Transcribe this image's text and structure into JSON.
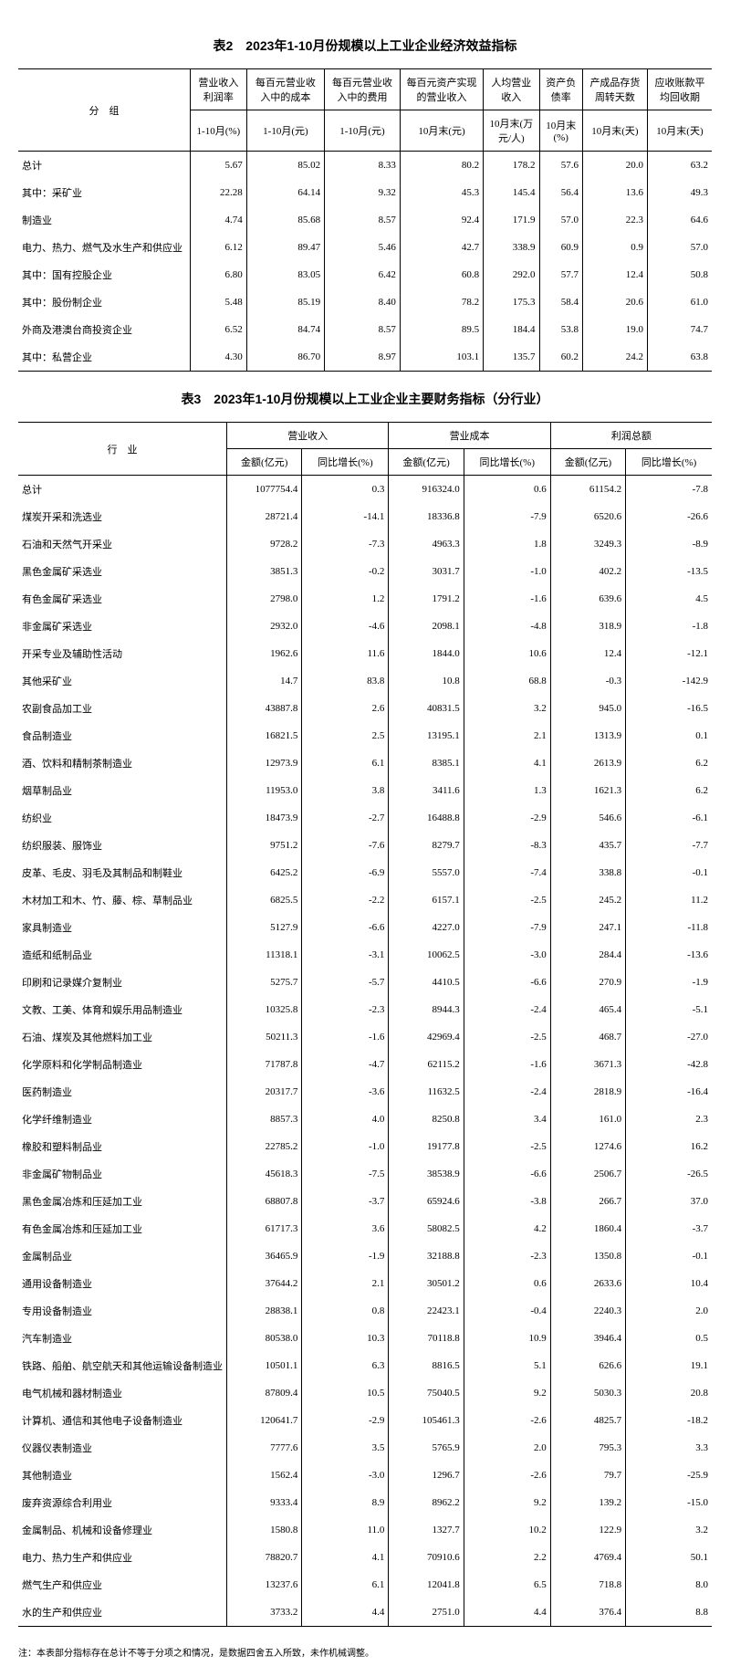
{
  "table2": {
    "title": "表2　2023年1-10月份规模以上工业企业经济效益指标",
    "header_group": "分　组",
    "columns": [
      "营业收入利润率",
      "每百元营业收入中的成本",
      "每百元营业收入中的费用",
      "每百元资产实现的营业收入",
      "人均营业收入",
      "资产负债率",
      "产成品存货周转天数",
      "应收账款平均回收期"
    ],
    "subcolumns": [
      "1-10月(%)",
      "1-10月(元)",
      "1-10月(元)",
      "10月末(元)",
      "10月末(万元/人)",
      "10月末(%)",
      "10月末(天)",
      "10月末(天)"
    ],
    "rows": [
      {
        "label": "总计",
        "indent": 0,
        "v": [
          "5.67",
          "85.02",
          "8.33",
          "80.2",
          "178.2",
          "57.6",
          "20.0",
          "63.2"
        ]
      },
      {
        "label": "其中：采矿业",
        "indent": 0,
        "v": [
          "22.28",
          "64.14",
          "9.32",
          "45.3",
          "145.4",
          "56.4",
          "13.6",
          "49.3"
        ]
      },
      {
        "label": "制造业",
        "indent": 2,
        "v": [
          "4.74",
          "85.68",
          "8.57",
          "92.4",
          "171.9",
          "57.0",
          "22.3",
          "64.6"
        ]
      },
      {
        "label": "电力、热力、燃气及水生产和供应业",
        "indent": 2,
        "v": [
          "6.12",
          "89.47",
          "5.46",
          "42.7",
          "338.9",
          "60.9",
          "0.9",
          "57.0"
        ]
      },
      {
        "label": "其中：国有控股企业",
        "indent": 0,
        "v": [
          "6.80",
          "83.05",
          "6.42",
          "60.8",
          "292.0",
          "57.7",
          "12.4",
          "50.8"
        ]
      },
      {
        "label": "其中：股份制企业",
        "indent": 0,
        "v": [
          "5.48",
          "85.19",
          "8.40",
          "78.2",
          "175.3",
          "58.4",
          "20.6",
          "61.0"
        ]
      },
      {
        "label": "外商及港澳台商投资企业",
        "indent": 2,
        "v": [
          "6.52",
          "84.74",
          "8.57",
          "89.5",
          "184.4",
          "53.8",
          "19.0",
          "74.7"
        ]
      },
      {
        "label": "其中：私营企业",
        "indent": 0,
        "v": [
          "4.30",
          "86.70",
          "8.97",
          "103.1",
          "135.7",
          "60.2",
          "24.2",
          "63.8"
        ]
      }
    ]
  },
  "table3": {
    "title": "表3　2023年1-10月份规模以上工业企业主要财务指标（分行业）",
    "header_industry": "行　业",
    "header_groups": [
      "营业收入",
      "营业成本",
      "利润总额"
    ],
    "subheaders": [
      "金额(亿元)",
      "同比增长(%)"
    ],
    "rows": [
      {
        "label": "总计",
        "indent": 0,
        "v": [
          "1077754.4",
          "0.3",
          "916324.0",
          "0.6",
          "61154.2",
          "-7.8"
        ]
      },
      {
        "label": "煤炭开采和洗选业",
        "indent": 1,
        "v": [
          "28721.4",
          "-14.1",
          "18336.8",
          "-7.9",
          "6520.6",
          "-26.6"
        ]
      },
      {
        "label": "石油和天然气开采业",
        "indent": 1,
        "v": [
          "9728.2",
          "-7.3",
          "4963.3",
          "1.8",
          "3249.3",
          "-8.9"
        ]
      },
      {
        "label": "黑色金属矿采选业",
        "indent": 1,
        "v": [
          "3851.3",
          "-0.2",
          "3031.7",
          "-1.0",
          "402.2",
          "-13.5"
        ]
      },
      {
        "label": "有色金属矿采选业",
        "indent": 1,
        "v": [
          "2798.0",
          "1.2",
          "1791.2",
          "-1.6",
          "639.6",
          "4.5"
        ]
      },
      {
        "label": "非金属矿采选业",
        "indent": 1,
        "v": [
          "2932.0",
          "-4.6",
          "2098.1",
          "-4.8",
          "318.9",
          "-1.8"
        ]
      },
      {
        "label": "开采专业及辅助性活动",
        "indent": 1,
        "v": [
          "1962.6",
          "11.6",
          "1844.0",
          "10.6",
          "12.4",
          "-12.1"
        ]
      },
      {
        "label": "其他采矿业",
        "indent": 1,
        "v": [
          "14.7",
          "83.8",
          "10.8",
          "68.8",
          "-0.3",
          "-142.9"
        ]
      },
      {
        "label": "农副食品加工业",
        "indent": 1,
        "v": [
          "43887.8",
          "2.6",
          "40831.5",
          "3.2",
          "945.0",
          "-16.5"
        ]
      },
      {
        "label": "食品制造业",
        "indent": 1,
        "v": [
          "16821.5",
          "2.5",
          "13195.1",
          "2.1",
          "1313.9",
          "0.1"
        ]
      },
      {
        "label": "酒、饮料和精制茶制造业",
        "indent": 1,
        "v": [
          "12973.9",
          "6.1",
          "8385.1",
          "4.1",
          "2613.9",
          "6.2"
        ]
      },
      {
        "label": "烟草制品业",
        "indent": 1,
        "v": [
          "11953.0",
          "3.8",
          "3411.6",
          "1.3",
          "1621.3",
          "6.2"
        ]
      },
      {
        "label": "纺织业",
        "indent": 1,
        "v": [
          "18473.9",
          "-2.7",
          "16488.8",
          "-2.9",
          "546.6",
          "-6.1"
        ]
      },
      {
        "label": "纺织服装、服饰业",
        "indent": 1,
        "v": [
          "9751.2",
          "-7.6",
          "8279.7",
          "-8.3",
          "435.7",
          "-7.7"
        ]
      },
      {
        "label": "皮革、毛皮、羽毛及其制品和制鞋业",
        "indent": 1,
        "v": [
          "6425.2",
          "-6.9",
          "5557.0",
          "-7.4",
          "338.8",
          "-0.1"
        ]
      },
      {
        "label": "木材加工和木、竹、藤、棕、草制品业",
        "indent": 1,
        "v": [
          "6825.5",
          "-2.2",
          "6157.1",
          "-2.5",
          "245.2",
          "11.2"
        ]
      },
      {
        "label": "家具制造业",
        "indent": 1,
        "v": [
          "5127.9",
          "-6.6",
          "4227.0",
          "-7.9",
          "247.1",
          "-11.8"
        ]
      },
      {
        "label": "造纸和纸制品业",
        "indent": 1,
        "v": [
          "11318.1",
          "-3.1",
          "10062.5",
          "-3.0",
          "284.4",
          "-13.6"
        ]
      },
      {
        "label": "印刷和记录媒介复制业",
        "indent": 1,
        "v": [
          "5275.7",
          "-5.7",
          "4410.5",
          "-6.6",
          "270.9",
          "-1.9"
        ]
      },
      {
        "label": "文教、工美、体育和娱乐用品制造业",
        "indent": 1,
        "v": [
          "10325.8",
          "-2.3",
          "8944.3",
          "-2.4",
          "465.4",
          "-5.1"
        ]
      },
      {
        "label": "石油、煤炭及其他燃料加工业",
        "indent": 1,
        "v": [
          "50211.3",
          "-1.6",
          "42969.4",
          "-2.5",
          "468.7",
          "-27.0"
        ]
      },
      {
        "label": "化学原料和化学制品制造业",
        "indent": 1,
        "v": [
          "71787.8",
          "-4.7",
          "62115.2",
          "-1.6",
          "3671.3",
          "-42.8"
        ]
      },
      {
        "label": "医药制造业",
        "indent": 1,
        "v": [
          "20317.7",
          "-3.6",
          "11632.5",
          "-2.4",
          "2818.9",
          "-16.4"
        ]
      },
      {
        "label": "化学纤维制造业",
        "indent": 1,
        "v": [
          "8857.3",
          "4.0",
          "8250.8",
          "3.4",
          "161.0",
          "2.3"
        ]
      },
      {
        "label": "橡胶和塑料制品业",
        "indent": 1,
        "v": [
          "22785.2",
          "-1.0",
          "19177.8",
          "-2.5",
          "1274.6",
          "16.2"
        ]
      },
      {
        "label": "非金属矿物制品业",
        "indent": 1,
        "v": [
          "45618.3",
          "-7.5",
          "38538.9",
          "-6.6",
          "2506.7",
          "-26.5"
        ]
      },
      {
        "label": "黑色金属冶炼和压延加工业",
        "indent": 1,
        "v": [
          "68807.8",
          "-3.7",
          "65924.6",
          "-3.8",
          "266.7",
          "37.0"
        ]
      },
      {
        "label": "有色金属冶炼和压延加工业",
        "indent": 1,
        "v": [
          "61717.3",
          "3.6",
          "58082.5",
          "4.2",
          "1860.4",
          "-3.7"
        ]
      },
      {
        "label": "金属制品业",
        "indent": 1,
        "v": [
          "36465.9",
          "-1.9",
          "32188.8",
          "-2.3",
          "1350.8",
          "-0.1"
        ]
      },
      {
        "label": "通用设备制造业",
        "indent": 1,
        "v": [
          "37644.2",
          "2.1",
          "30501.2",
          "0.6",
          "2633.6",
          "10.4"
        ]
      },
      {
        "label": "专用设备制造业",
        "indent": 1,
        "v": [
          "28838.1",
          "0.8",
          "22423.1",
          "-0.4",
          "2240.3",
          "2.0"
        ]
      },
      {
        "label": "汽车制造业",
        "indent": 1,
        "v": [
          "80538.0",
          "10.3",
          "70118.8",
          "10.9",
          "3946.4",
          "0.5"
        ]
      },
      {
        "label": "铁路、船舶、航空航天和其他运输设备制造业",
        "indent": 1,
        "v": [
          "10501.1",
          "6.3",
          "8816.5",
          "5.1",
          "626.6",
          "19.1"
        ]
      },
      {
        "label": "电气机械和器材制造业",
        "indent": 1,
        "v": [
          "87809.4",
          "10.5",
          "75040.5",
          "9.2",
          "5030.3",
          "20.8"
        ]
      },
      {
        "label": "计算机、通信和其他电子设备制造业",
        "indent": 1,
        "v": [
          "120641.7",
          "-2.9",
          "105461.3",
          "-2.6",
          "4825.7",
          "-18.2"
        ]
      },
      {
        "label": "仪器仪表制造业",
        "indent": 1,
        "v": [
          "7777.6",
          "3.5",
          "5765.9",
          "2.0",
          "795.3",
          "3.3"
        ]
      },
      {
        "label": "其他制造业",
        "indent": 1,
        "v": [
          "1562.4",
          "-3.0",
          "1296.7",
          "-2.6",
          "79.7",
          "-25.9"
        ]
      },
      {
        "label": "废弃资源综合利用业",
        "indent": 1,
        "v": [
          "9333.4",
          "8.9",
          "8962.2",
          "9.2",
          "139.2",
          "-15.0"
        ]
      },
      {
        "label": "金属制品、机械和设备修理业",
        "indent": 1,
        "v": [
          "1580.8",
          "11.0",
          "1327.7",
          "10.2",
          "122.9",
          "3.2"
        ]
      },
      {
        "label": "电力、热力生产和供应业",
        "indent": 1,
        "v": [
          "78820.7",
          "4.1",
          "70910.6",
          "2.2",
          "4769.4",
          "50.1"
        ]
      },
      {
        "label": "燃气生产和供应业",
        "indent": 1,
        "v": [
          "13237.6",
          "6.1",
          "12041.8",
          "6.5",
          "718.8",
          "8.0"
        ]
      },
      {
        "label": "水的生产和供应业",
        "indent": 1,
        "v": [
          "3733.2",
          "4.4",
          "2751.0",
          "4.4",
          "376.4",
          "8.8"
        ]
      }
    ],
    "footnote": "注：本表部分指标存在总计不等于分项之和情况，是数据四舍五入所致，未作机械调整。"
  }
}
